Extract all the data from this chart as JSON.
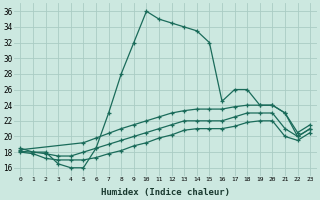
{
  "xlabel": "Humidex (Indice chaleur)",
  "ylabel": "",
  "background_color": "#cce8e0",
  "grid_color": "#aaccc4",
  "line_color": "#1a6b5a",
  "xlim": [
    -0.5,
    23.5
  ],
  "ylim": [
    15,
    37
  ],
  "xticks": [
    0,
    1,
    2,
    3,
    4,
    5,
    6,
    7,
    8,
    9,
    10,
    11,
    12,
    13,
    14,
    15,
    16,
    17,
    18,
    19,
    20,
    21,
    22,
    23
  ],
  "yticks": [
    16,
    18,
    20,
    22,
    24,
    26,
    28,
    30,
    32,
    34,
    36
  ],
  "series1_x": [
    0,
    1,
    2,
    3,
    4,
    5,
    6,
    7,
    8,
    9,
    10,
    11,
    12,
    13,
    14,
    15,
    16,
    17,
    18,
    19,
    20,
    21,
    22,
    23
  ],
  "series1_y": [
    18.5,
    18,
    18,
    16.5,
    16,
    16,
    18.5,
    23,
    28,
    32,
    36,
    35,
    34.5,
    34,
    33.5,
    32,
    24.5,
    26,
    26,
    24,
    24,
    23,
    20,
    21
  ],
  "series2_x": [
    0,
    5,
    6,
    7,
    8,
    9,
    10,
    11,
    12,
    13,
    14,
    15,
    16,
    17,
    18,
    19,
    20,
    21,
    22,
    23
  ],
  "series2_y": [
    18.3,
    19.2,
    19.8,
    20.4,
    21.0,
    21.5,
    22.0,
    22.5,
    23.0,
    23.3,
    23.5,
    23.5,
    23.5,
    23.8,
    24.0,
    24.0,
    24.0,
    23.0,
    20.5,
    21.5
  ],
  "series3_x": [
    0,
    1,
    2,
    3,
    4,
    5,
    6,
    7,
    8,
    9,
    10,
    11,
    12,
    13,
    14,
    15,
    16,
    17,
    18,
    19,
    20,
    21,
    22,
    23
  ],
  "series3_y": [
    18.1,
    18.0,
    17.8,
    17.5,
    17.5,
    18.0,
    18.5,
    19.0,
    19.5,
    20.0,
    20.5,
    21.0,
    21.5,
    22.0,
    22.0,
    22.0,
    22.0,
    22.5,
    23.0,
    23.0,
    23.0,
    21.0,
    20.0,
    21.0
  ],
  "series4_x": [
    0,
    1,
    2,
    3,
    4,
    5,
    6,
    7,
    8,
    9,
    10,
    11,
    12,
    13,
    14,
    15,
    16,
    17,
    18,
    19,
    20,
    21,
    22,
    23
  ],
  "series4_y": [
    18.0,
    17.8,
    17.2,
    17.0,
    17.0,
    17.0,
    17.3,
    17.8,
    18.2,
    18.8,
    19.2,
    19.8,
    20.2,
    20.8,
    21.0,
    21.0,
    21.0,
    21.3,
    21.8,
    22.0,
    22.0,
    20.0,
    19.5,
    20.5
  ]
}
